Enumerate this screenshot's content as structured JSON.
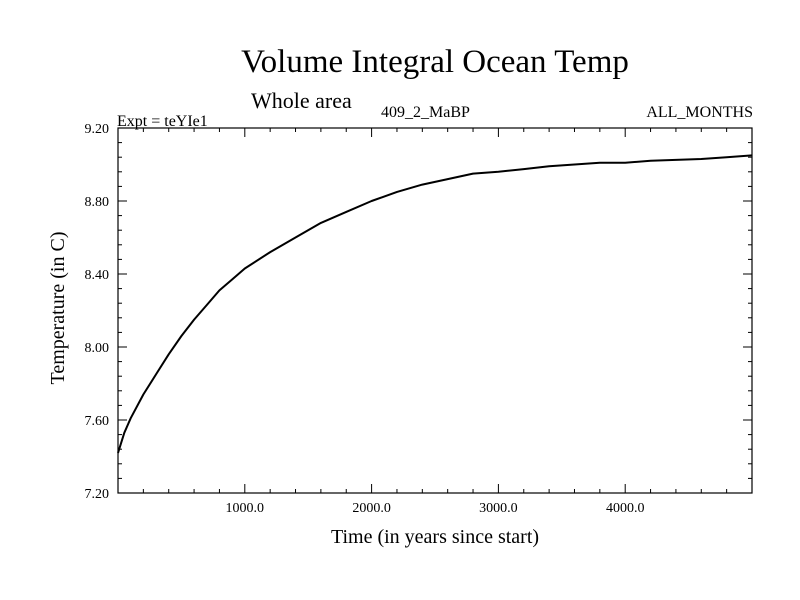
{
  "header": {
    "title": "Volume Integral Ocean Temp",
    "subtitle": "Whole area",
    "expt_label": "Expt = teYIe1",
    "run_label": "409_2_MaBP",
    "period_label": "ALL_MONTHS"
  },
  "chart_data": {
    "type": "line",
    "title": "Volume Integral Ocean Temp",
    "subtitle": "Whole area",
    "xlabel": "Time (in years since start)",
    "ylabel": "Temperature (in C)",
    "xlim": [
      0,
      5000
    ],
    "ylim": [
      7.2,
      9.2
    ],
    "xticks": [
      1000,
      2000,
      3000,
      4000
    ],
    "xtick_labels": [
      "1000.0",
      "2000.0",
      "3000.0",
      "4000.0"
    ],
    "yticks": [
      7.2,
      7.6,
      8.0,
      8.4,
      8.8,
      9.2
    ],
    "ytick_labels": [
      "7.20",
      "7.60",
      "8.00",
      "8.40",
      "8.80",
      "9.20"
    ],
    "grid": false,
    "series": [
      {
        "name": "Volume Integral Ocean Temp",
        "x": [
          0,
          50,
          100,
          200,
          300,
          400,
          500,
          600,
          700,
          800,
          900,
          1000,
          1200,
          1400,
          1600,
          1800,
          2000,
          2200,
          2400,
          2600,
          2800,
          3000,
          3200,
          3400,
          3600,
          3800,
          4000,
          4200,
          4400,
          4600,
          4800,
          5000
        ],
        "values": [
          7.42,
          7.53,
          7.61,
          7.74,
          7.85,
          7.96,
          8.06,
          8.15,
          8.23,
          8.31,
          8.37,
          8.43,
          8.52,
          8.6,
          8.68,
          8.74,
          8.8,
          8.85,
          8.89,
          8.92,
          8.95,
          8.96,
          8.975,
          8.99,
          9.0,
          9.01,
          9.01,
          9.02,
          9.025,
          9.03,
          9.04,
          9.05
        ]
      }
    ]
  }
}
